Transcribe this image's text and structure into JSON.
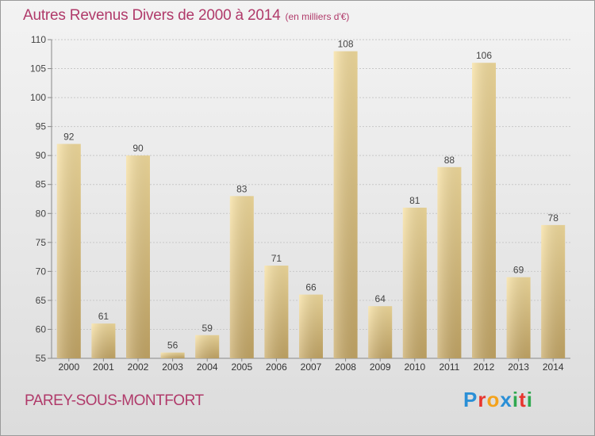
{
  "header": {
    "title": "Autres Revenus Divers de 2000 à 2014",
    "unit": "(en milliers d'€)"
  },
  "footer": {
    "city": "PAREY-SOUS-MONTFORT",
    "logo_letters": [
      "P",
      "r",
      "o",
      "x",
      "i",
      "t",
      "i"
    ],
    "logo_colors": [
      "#2a8fd6",
      "#e8352e",
      "#f4a21b",
      "#2a8fd6",
      "#2fa84f",
      "#e8352e",
      "#2fa84f"
    ]
  },
  "chart_data": {
    "type": "bar",
    "title": "Autres Revenus Divers de 2000 à 2014",
    "subtitle": "(en milliers d'€)",
    "xlabel": "",
    "ylabel": "",
    "categories": [
      "2000",
      "2001",
      "2002",
      "2003",
      "2004",
      "2005",
      "2006",
      "2007",
      "2008",
      "2009",
      "2010",
      "2011",
      "2012",
      "2013",
      "2014"
    ],
    "values": [
      92,
      61,
      90,
      56,
      59,
      83,
      71,
      66,
      108,
      64,
      81,
      88,
      106,
      69,
      78
    ],
    "ylim": [
      55,
      110
    ],
    "yticks": [
      55,
      60,
      65,
      70,
      75,
      80,
      85,
      90,
      95,
      100,
      105,
      110
    ],
    "grid": true,
    "legend": "none",
    "colors": {
      "bar_light": "#f7e0a0",
      "bar_dark": "#c8aa68",
      "label": "#444444",
      "axis": "#888888",
      "grid": "#c8c8c8"
    }
  }
}
